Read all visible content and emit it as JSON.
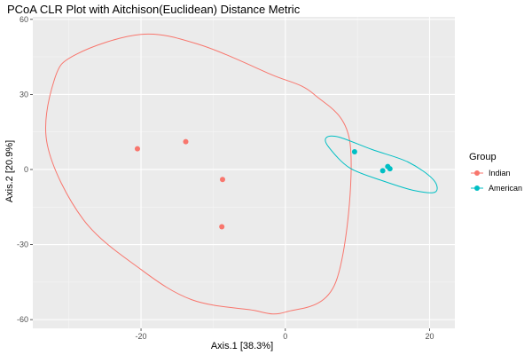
{
  "chart_data": {
    "type": "scatter",
    "title": "PCoA CLR Plot with Aitchison(Euclidean) Distance Metric",
    "xlabel": "Axis.1   [38.3%]",
    "ylabel": "Axis.2   [20.9%]",
    "xlim": [
      -35,
      23.5
    ],
    "ylim": [
      -63.5,
      61
    ],
    "x_ticks": [
      -20,
      0,
      20
    ],
    "y_ticks": [
      -60,
      -30,
      0,
      30,
      60
    ],
    "grid": true,
    "legend": {
      "title": "Group",
      "position": "right"
    },
    "series": [
      {
        "name": "Indian",
        "color": "#F8766D",
        "points": [
          {
            "x": -20.5,
            "y": 8.3
          },
          {
            "x": -13.8,
            "y": 11.1
          },
          {
            "x": -8.7,
            "y": -4.0
          },
          {
            "x": -8.8,
            "y": -22.9
          }
        ],
        "ellipse": [
          [
            -32,
            36
          ],
          [
            -29,
            46
          ],
          [
            -20,
            54
          ],
          [
            -12,
            50
          ],
          [
            -2,
            38
          ],
          [
            4,
            30
          ],
          [
            9,
            10
          ],
          [
            7,
            -45
          ],
          [
            0,
            -57
          ],
          [
            -5,
            -56
          ],
          [
            -13,
            -52
          ],
          [
            -20,
            -40
          ],
          [
            -28,
            -20
          ],
          [
            -33,
            10
          ]
        ]
      },
      {
        "name": "American",
        "color": "#00BFC4",
        "points": [
          {
            "x": 9.6,
            "y": 7.1
          },
          {
            "x": 14.2,
            "y": 1.2
          },
          {
            "x": 14.5,
            "y": 0.3
          },
          {
            "x": 13.5,
            "y": -0.5
          }
        ],
        "ellipse": [
          [
            5.7,
            12.8
          ],
          [
            7.5,
            12.9
          ],
          [
            12,
            8
          ],
          [
            17,
            3
          ],
          [
            20.5,
            -4
          ],
          [
            20.8,
            -9
          ],
          [
            18,
            -8.5
          ],
          [
            14,
            -5
          ],
          [
            9,
            0.5
          ],
          [
            6,
            9
          ]
        ]
      }
    ]
  },
  "colors": {
    "panel_background": "#EBEBEB",
    "grid_major": "#FFFFFF",
    "grid_minor": "#F5F5F5"
  }
}
